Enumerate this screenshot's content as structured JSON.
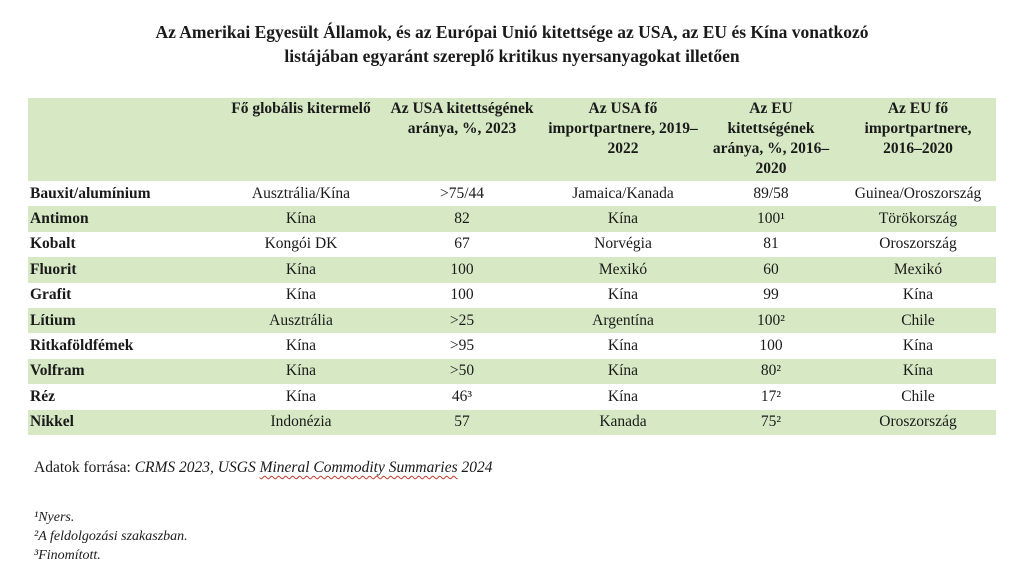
{
  "title_line1": "Az Amerikai Egyesült Államok, és az Európai Unió kitettsége az USA, az EU és Kína vonatkozó",
  "title_line2": "listájában egyaránt szereplő kritikus nyersanyagokat illetően",
  "colors": {
    "header_bg": "#d7e9c4",
    "row_shade": "#d7e9c4",
    "text": "#1a1a1a"
  },
  "headers": [
    "",
    "Fő globális kitermelő",
    "Az USA kitettségének aránya, %, 2023",
    "Az USA fő importpartnere, 2019–2022",
    "Az EU kitettségének aránya, %, 2016–2020",
    "Az EU fő importpartnere, 2016–2020"
  ],
  "rows": [
    [
      "Bauxit/alumínium",
      "Ausztrália/Kína",
      ">75/44",
      "Jamaica/Kanada",
      "89/58",
      "Guinea/Oroszország"
    ],
    [
      "Antimon",
      "Kína",
      "82",
      "Kína",
      "100¹",
      "Törökország"
    ],
    [
      "Kobalt",
      "Kongói DK",
      "67",
      "Norvégia",
      "81",
      "Oroszország"
    ],
    [
      "Fluorit",
      "Kína",
      "100",
      "Mexikó",
      "60",
      "Mexikó"
    ],
    [
      "Grafit",
      "Kína",
      "100",
      "Kína",
      "99",
      "Kína"
    ],
    [
      "Lítium",
      "Ausztrália",
      ">25",
      "Argentína",
      "100²",
      "Chile"
    ],
    [
      "Ritkaföldfémek",
      "Kína",
      ">95",
      "Kína",
      "100",
      "Kína"
    ],
    [
      "Volfram",
      "Kína",
      ">50",
      "Kína",
      "80²",
      "Kína"
    ],
    [
      "Réz",
      "Kína",
      "46³",
      "Kína",
      "17²",
      "Chile"
    ],
    [
      "Nikkel",
      "Indonézia",
      "57",
      "Kanada",
      "75²",
      "Oroszország"
    ]
  ],
  "source": {
    "prefix": "Adatok forrása: ",
    "part1": "CRMS 2023, USGS ",
    "part2": "Mineral Commodity Summaries",
    "part3": " 2024"
  },
  "footnotes": [
    "¹Nyers.",
    "²A feldolgozási szakaszban.",
    "³Finomított."
  ]
}
